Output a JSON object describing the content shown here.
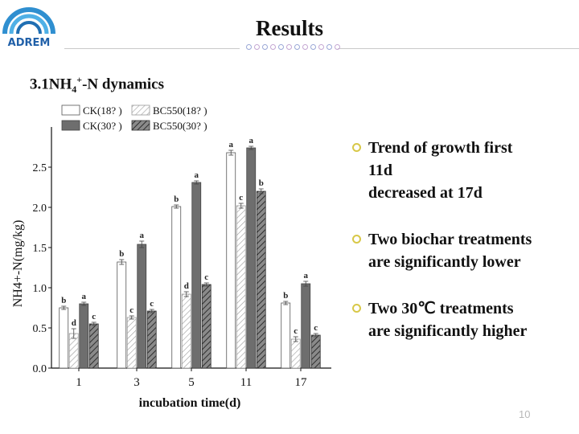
{
  "header": {
    "logo_text": "ADREM",
    "title": "Results"
  },
  "section": {
    "number": "3.1",
    "species_main": "NH",
    "species_sub": "4",
    "species_sup": "+",
    "species_tail": "-N dynamics"
  },
  "bullets": [
    {
      "lines": [
        "Trend of growth first",
        "11d",
        "decreased at 17d"
      ]
    },
    {
      "lines": [
        "Two biochar treatments",
        "are significantly lower"
      ]
    },
    {
      "lines": [
        "Two 30℃ treatments",
        "are significantly higher"
      ]
    }
  ],
  "page_number": "10",
  "chart_data": {
    "type": "bar",
    "categories": [
      "1",
      "3",
      "5",
      "11",
      "17"
    ],
    "xlabel": "incubation time(d)",
    "ylabel": "NH4+-N(mg/kg)",
    "ylim": [
      0,
      3.0
    ],
    "yticks": [
      0.0,
      0.5,
      1.0,
      1.5,
      2.0,
      2.5
    ],
    "ytick_labels": [
      "0.0",
      "0.5",
      "1.0",
      "1.5",
      "2.0",
      "2.5"
    ],
    "legend_position": "top-left",
    "series": [
      {
        "name": "CK(18? )",
        "style": "white",
        "values": [
          0.75,
          1.32,
          2.01,
          2.68,
          0.81
        ],
        "errors": [
          0.02,
          0.03,
          0.02,
          0.03,
          0.02
        ],
        "letters": [
          "b",
          "b",
          "b",
          "a",
          "b"
        ]
      },
      {
        "name": "BC550(18? )",
        "style": "light-hatch",
        "values": [
          0.43,
          0.63,
          0.92,
          2.02,
          0.36
        ],
        "errors": [
          0.06,
          0.02,
          0.03,
          0.03,
          0.03
        ],
        "letters": [
          "d",
          "c",
          "d",
          "c",
          "c"
        ]
      },
      {
        "name": "CK(30? )",
        "style": "gray",
        "values": [
          0.8,
          1.54,
          2.31,
          2.74,
          1.05
        ],
        "errors": [
          0.02,
          0.04,
          0.02,
          0.02,
          0.03
        ],
        "letters": [
          "a",
          "a",
          "a",
          "a",
          "a"
        ]
      },
      {
        "name": "BC550(30? )",
        "style": "dark-hatch",
        "values": [
          0.55,
          0.71,
          1.04,
          2.2,
          0.41
        ],
        "errors": [
          0.02,
          0.02,
          0.02,
          0.03,
          0.02
        ],
        "letters": [
          "c",
          "c",
          "c",
          "b",
          "c"
        ]
      }
    ],
    "colors": {
      "white": "#ffffff",
      "gray": "#6e6e6e",
      "light_hatch": "#9a9a9a",
      "dark_hatch": "#3c3c3c",
      "axis": "#111111"
    }
  }
}
